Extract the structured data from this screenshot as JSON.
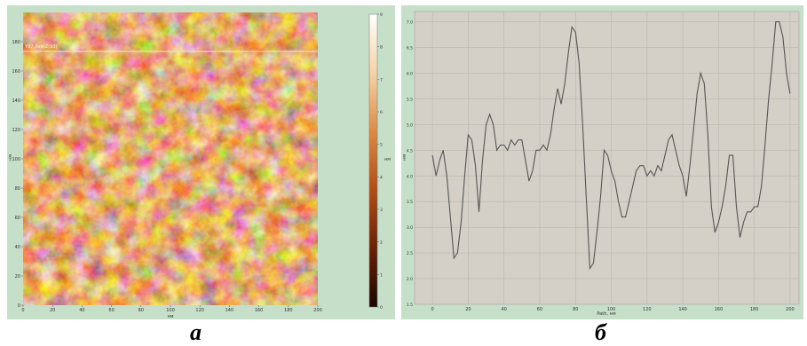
{
  "figure": {
    "caption_a": "а",
    "caption_b": "б"
  },
  "afm_image": {
    "x_ticks": [
      "0",
      "20",
      "40",
      "60",
      "80",
      "100",
      "120",
      "140",
      "160",
      "180",
      "200"
    ],
    "y_ticks": [
      "0",
      "20",
      "40",
      "60",
      "80",
      "100",
      "120",
      "140",
      "160",
      "180"
    ],
    "x_unit": "нм",
    "y_unit": "нм",
    "line_label": "Y97.7нм Z(93)",
    "colorbar_ticks": [
      "0",
      "1",
      "2",
      "3",
      "4",
      "5",
      "6",
      "7",
      "8",
      "9"
    ],
    "colorbar_unit": "нм",
    "palette": [
      "#1a0600",
      "#6a2206",
      "#b34d14",
      "#de8a45",
      "#f6d3a6",
      "#ffffff"
    ]
  },
  "chart_data": {
    "type": "line",
    "title": "",
    "xlabel": "Path, нм",
    "ylabel": "нм",
    "xlim": [
      -10,
      205
    ],
    "ylim": [
      1.5,
      7.2
    ],
    "x_ticks": [
      0,
      20,
      40,
      60,
      80,
      100,
      120,
      140,
      160,
      180,
      200
    ],
    "y_ticks": [
      1.5,
      2.0,
      2.5,
      3.0,
      3.5,
      4.0,
      4.5,
      5.0,
      5.5,
      6.0,
      6.5,
      7.0
    ],
    "grid": true,
    "series": [
      {
        "color": "#555555",
        "x": [
          0,
          2,
          4,
          6,
          8,
          10,
          12,
          14,
          16,
          18,
          20,
          22,
          24,
          26,
          28,
          30,
          32,
          34,
          36,
          38,
          40,
          42,
          44,
          46,
          48,
          50,
          52,
          54,
          56,
          58,
          60,
          62,
          64,
          66,
          68,
          70,
          72,
          74,
          76,
          78,
          80,
          82,
          84,
          86,
          88,
          90,
          92,
          94,
          96,
          98,
          100,
          102,
          104,
          106,
          108,
          110,
          112,
          114,
          116,
          118,
          120,
          122,
          124,
          126,
          128,
          130,
          132,
          134,
          136,
          138,
          140,
          142,
          144,
          146,
          148,
          150,
          152,
          154,
          156,
          158,
          160,
          162,
          164,
          166,
          168,
          170,
          172,
          174,
          176,
          178,
          180,
          182,
          184,
          186,
          188,
          190,
          192,
          194,
          196,
          198,
          200
        ],
        "values": [
          4.4,
          4.0,
          4.3,
          4.5,
          4.0,
          3.2,
          2.4,
          2.5,
          3.1,
          4.0,
          4.8,
          4.7,
          4.2,
          3.3,
          4.3,
          5.0,
          5.2,
          5.0,
          4.5,
          4.6,
          4.6,
          4.5,
          4.7,
          4.6,
          4.7,
          4.7,
          4.3,
          3.9,
          4.1,
          4.5,
          4.5,
          4.6,
          4.5,
          4.8,
          5.3,
          5.7,
          5.4,
          5.8,
          6.4,
          6.9,
          6.8,
          6.2,
          5.0,
          3.6,
          2.2,
          2.3,
          2.9,
          3.6,
          4.5,
          4.4,
          4.1,
          3.9,
          3.5,
          3.2,
          3.2,
          3.5,
          3.8,
          4.1,
          4.2,
          4.2,
          4.0,
          4.1,
          4.0,
          4.2,
          4.1,
          4.4,
          4.7,
          4.8,
          4.5,
          4.2,
          4.0,
          3.6,
          4.2,
          4.9,
          5.6,
          6.0,
          5.8,
          4.8,
          3.4,
          2.9,
          3.1,
          3.4,
          3.8,
          4.4,
          4.4,
          3.4,
          2.8,
          3.1,
          3.3,
          3.3,
          3.4,
          3.4,
          3.8,
          4.6,
          5.5,
          6.2,
          7.0,
          7.0,
          6.7,
          6.0,
          5.6
        ]
      }
    ]
  }
}
